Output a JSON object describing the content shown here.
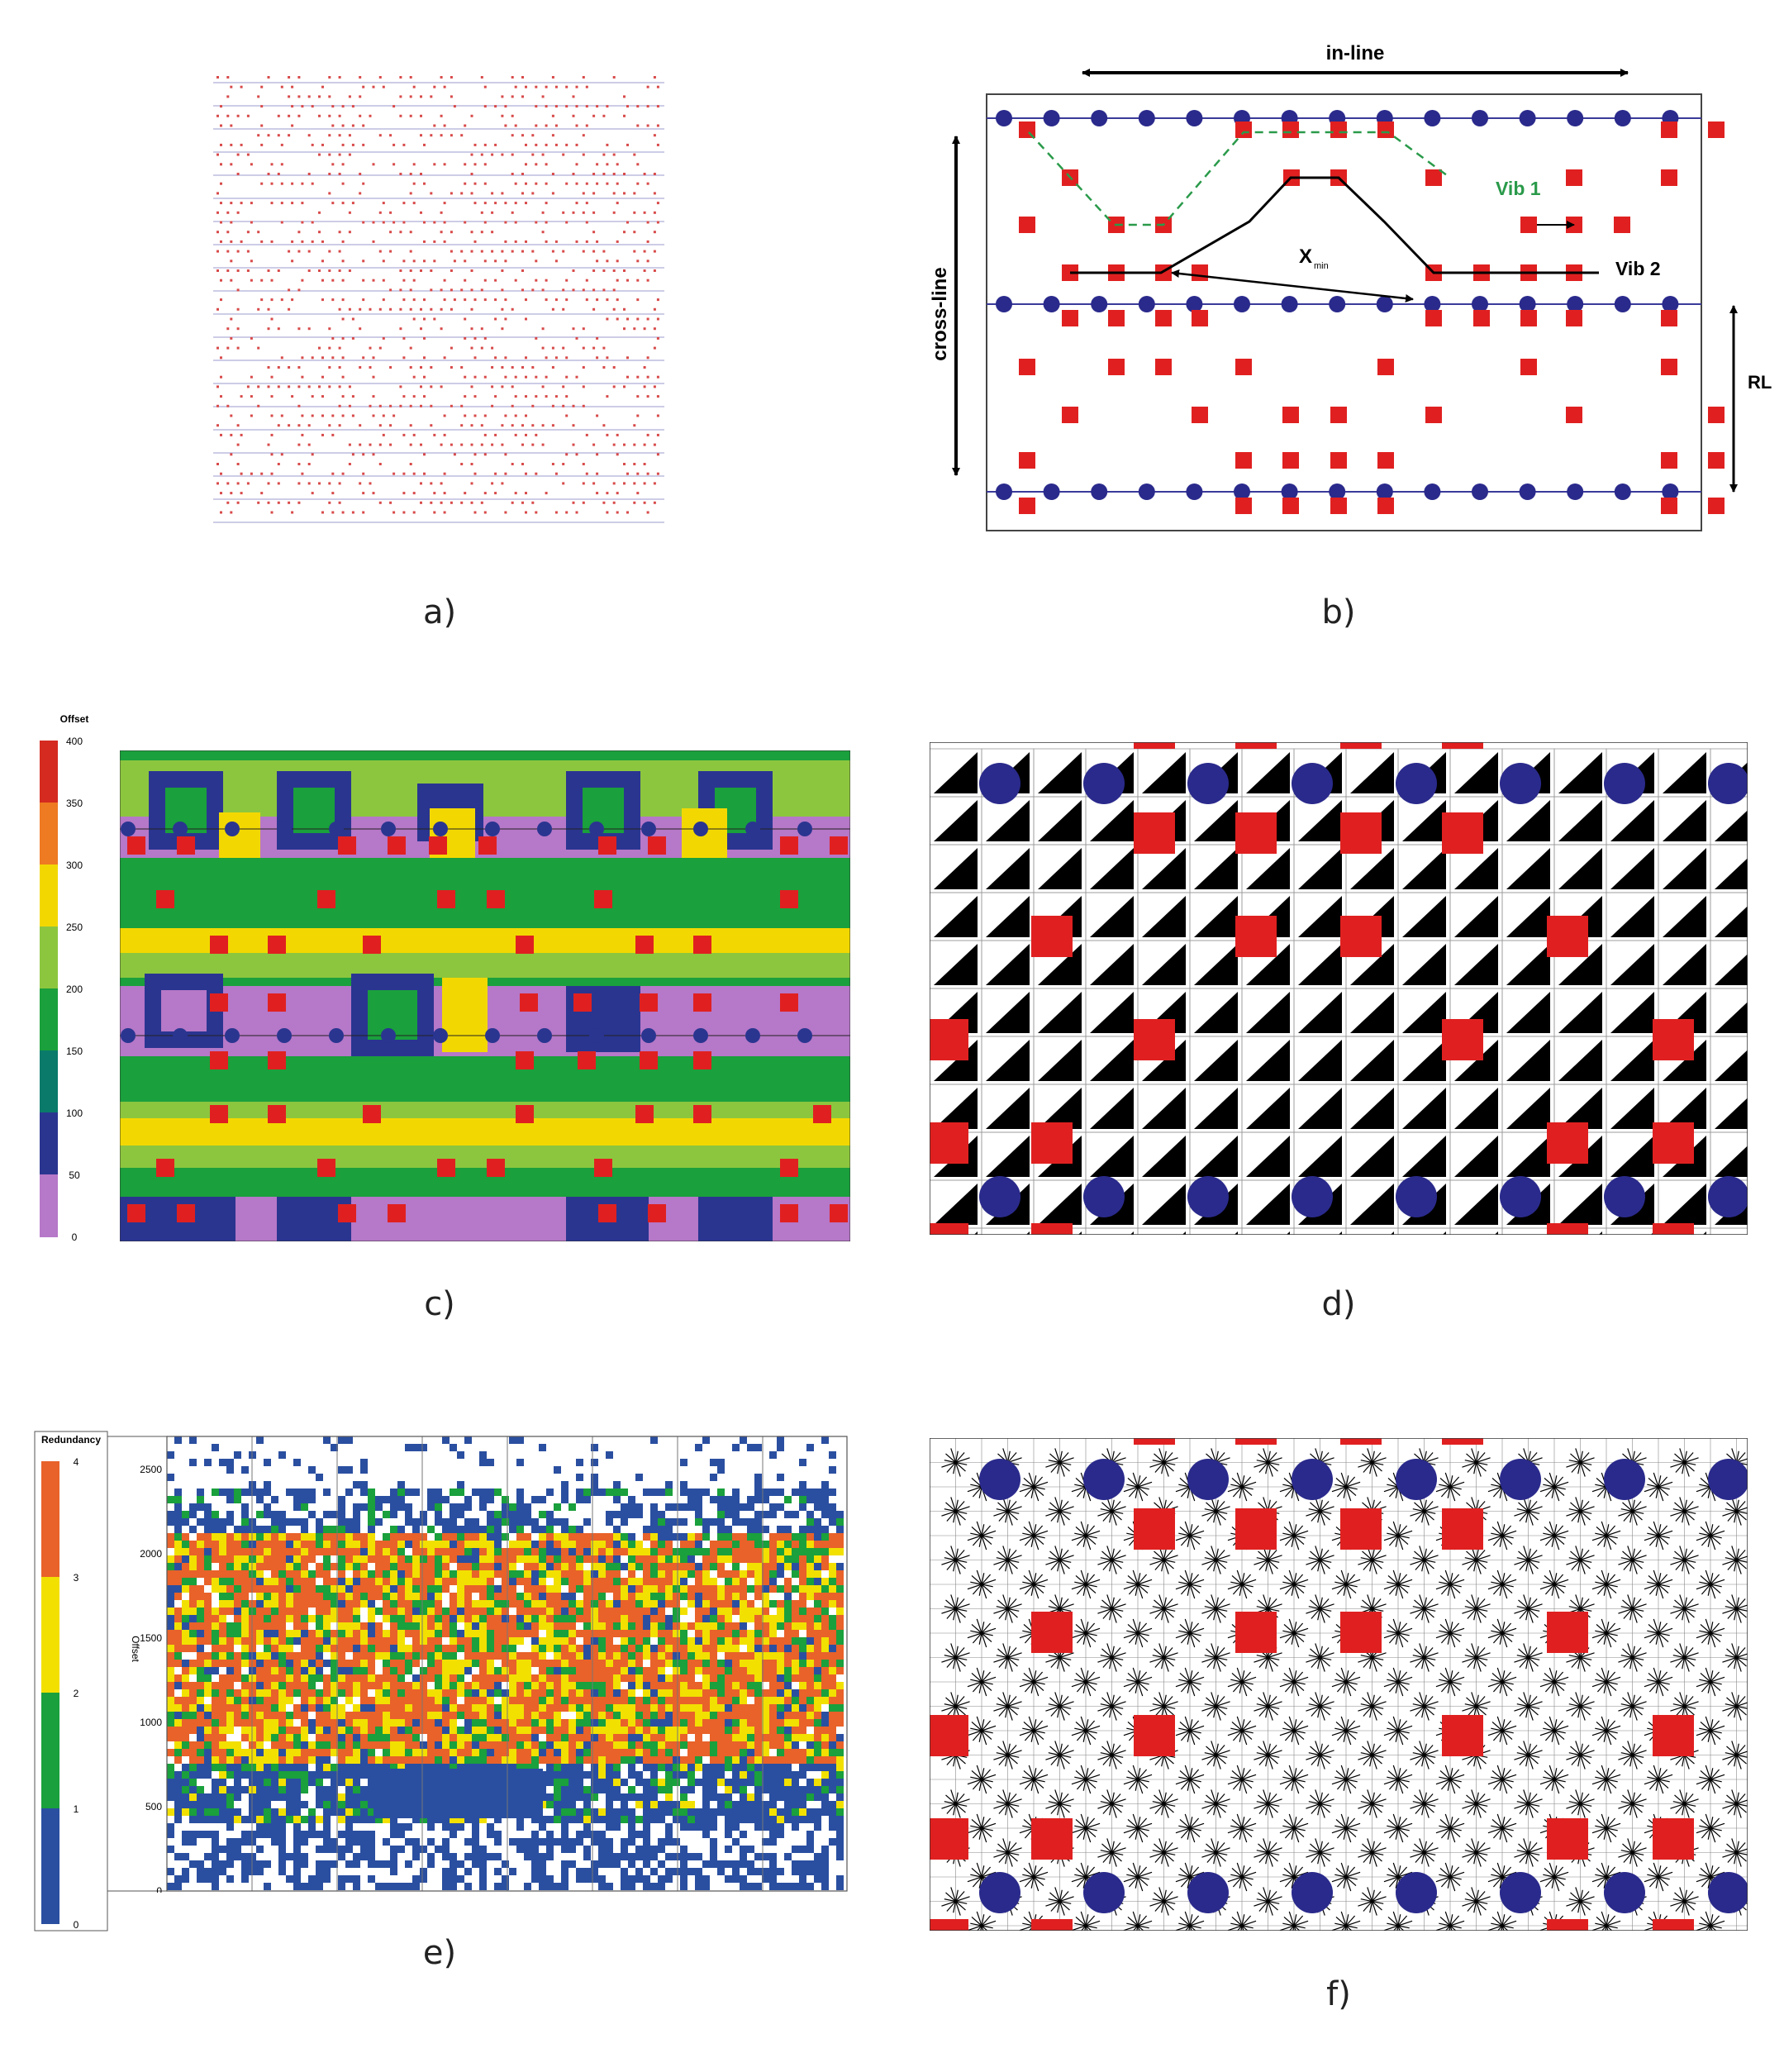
{
  "captions": {
    "a": "a)",
    "b": "b)",
    "c": "c)",
    "d": "d)",
    "e": "e)",
    "f": "f)"
  },
  "panel_b": {
    "inline_label": "in-line",
    "crossline_label": "cross-line",
    "rli_label": "RLI",
    "vib1_label": "Vib 1",
    "vib2_label": "Vib 2",
    "xmin_label": "X",
    "xmin_sub": "min"
  },
  "panel_c": {
    "legend_title": "Offset",
    "legend_ticks": [
      "400",
      "350",
      "300",
      "250",
      "200",
      "150",
      "100",
      "50",
      "0"
    ],
    "legend_colors": [
      "#d42a20",
      "#ee7a22",
      "#f2d800",
      "#8cc63f",
      "#1aa03c",
      "#0a7a6a",
      "#2a3590",
      "#b678c8"
    ]
  },
  "panel_e": {
    "legend_title": "Redundancy",
    "legend_ticks": [
      "4",
      "3",
      "2",
      "1",
      "0"
    ],
    "legend_colors": [
      "#e8622a",
      "#f2e000",
      "#1aa03c",
      "#2a4fa0"
    ],
    "axis_label": "Offset",
    "y_ticks": [
      "2500",
      "2000",
      "1500",
      "1000",
      "500",
      "0"
    ]
  },
  "colors": {
    "receiver": "#2a2a8c",
    "source": "#e02020",
    "receiver_line": "#3a3a9a",
    "vib1_path": "#2a9a4a"
  }
}
